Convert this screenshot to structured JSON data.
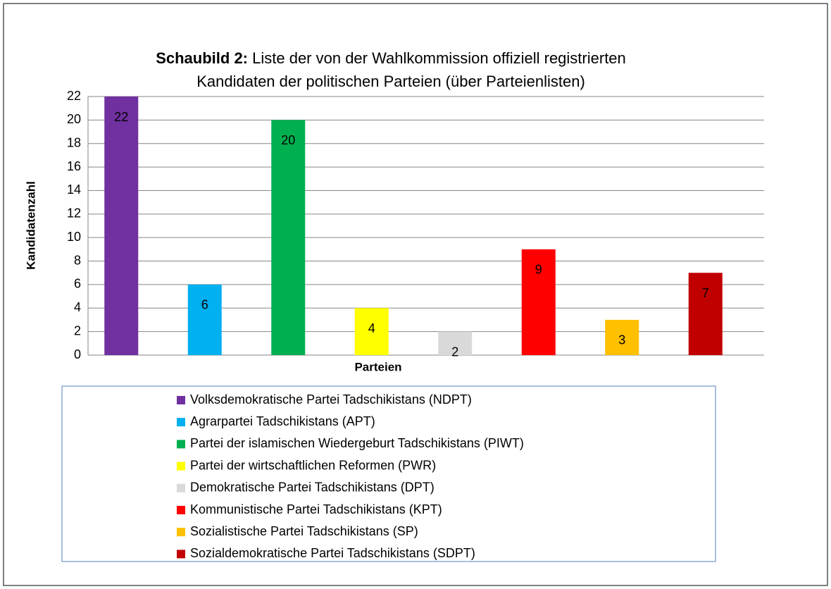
{
  "chart_data": {
    "type": "bar",
    "title_label": "Schaubild 2:",
    "title": [
      "Liste der von der Wahlkommission offiziell registrierten",
      "Kandidaten der politischen Parteien (über Parteienlisten)"
    ],
    "y_axis_label": "Kandidatenzahl",
    "x_axis_label": "Parteien",
    "categories": [
      "Volksdemokratische Partei Tadschikistans (NDPT)",
      "Agrarpartei Tadschikistans (APT)",
      "Partei der islamischen Wiedergeburt Tadschikistans (PIWT)",
      "Partei der wirtschaftlichen Reformen (PWR)",
      "Demokratische Partei Tadschikistans (DPT)",
      "Kommunistische Partei Tadschikistans (KPT)",
      "Sozialistische Partei Tadschikistans (SP)",
      "Sozialdemokratische Partei Tadschikistans (SDPT)"
    ],
    "values": [
      22,
      6,
      20,
      4,
      2,
      9,
      3,
      7
    ],
    "colors": [
      "#7030a0",
      "#00b0f0",
      "#00b050",
      "#ffff00",
      "#d9d9d9",
      "#ff0000",
      "#ffc000",
      "#c00000"
    ],
    "ylim": [
      0,
      22
    ],
    "yticks": [
      0,
      2,
      4,
      6,
      8,
      10,
      12,
      14,
      16,
      18,
      20,
      22
    ],
    "grid": true,
    "legend": "bottom"
  }
}
